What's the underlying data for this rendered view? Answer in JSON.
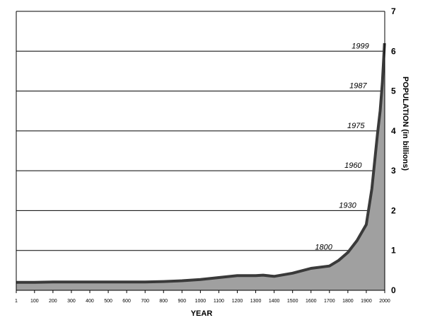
{
  "chart_data": {
    "type": "area",
    "xlabel": "YEAR",
    "ylabel": "POPULATION (in billions)",
    "xlim": [
      1,
      2000
    ],
    "ylim": [
      0,
      7
    ],
    "x_ticks": [
      1,
      100,
      200,
      300,
      400,
      500,
      600,
      700,
      800,
      900,
      1000,
      1100,
      1200,
      1300,
      1400,
      1500,
      1600,
      1700,
      1800,
      1900,
      2000
    ],
    "y_ticks": [
      0,
      1,
      2,
      3,
      4,
      5,
      6,
      7
    ],
    "grid": true,
    "x": [
      1,
      100,
      200,
      300,
      400,
      500,
      600,
      700,
      800,
      900,
      1000,
      1100,
      1200,
      1300,
      1340,
      1400,
      1500,
      1600,
      1700,
      1750,
      1800,
      1850,
      1900,
      1930,
      1960,
      1975,
      1987,
      1999
    ],
    "y": [
      0.2,
      0.2,
      0.21,
      0.21,
      0.21,
      0.21,
      0.21,
      0.21,
      0.22,
      0.24,
      0.27,
      0.32,
      0.37,
      0.37,
      0.38,
      0.35,
      0.43,
      0.55,
      0.61,
      0.75,
      0.95,
      1.25,
      1.65,
      2.55,
      3.9,
      4.5,
      5.2,
      6.2
    ],
    "annotations": [
      {
        "label": "1800",
        "x": 1800,
        "y": 0.95
      },
      {
        "label": "1930",
        "x": 1930,
        "y": 2.0
      },
      {
        "label": "1960",
        "x": 1960,
        "y": 3.0
      },
      {
        "label": "1975",
        "x": 1975,
        "y": 4.0
      },
      {
        "label": "1987",
        "x": 1987,
        "y": 5.0
      },
      {
        "label": "1999",
        "x": 1999,
        "y": 6.0
      }
    ],
    "colors": {
      "fill": "#a0a0a0",
      "line": "#3a3a3a",
      "grid": "#000000"
    }
  }
}
